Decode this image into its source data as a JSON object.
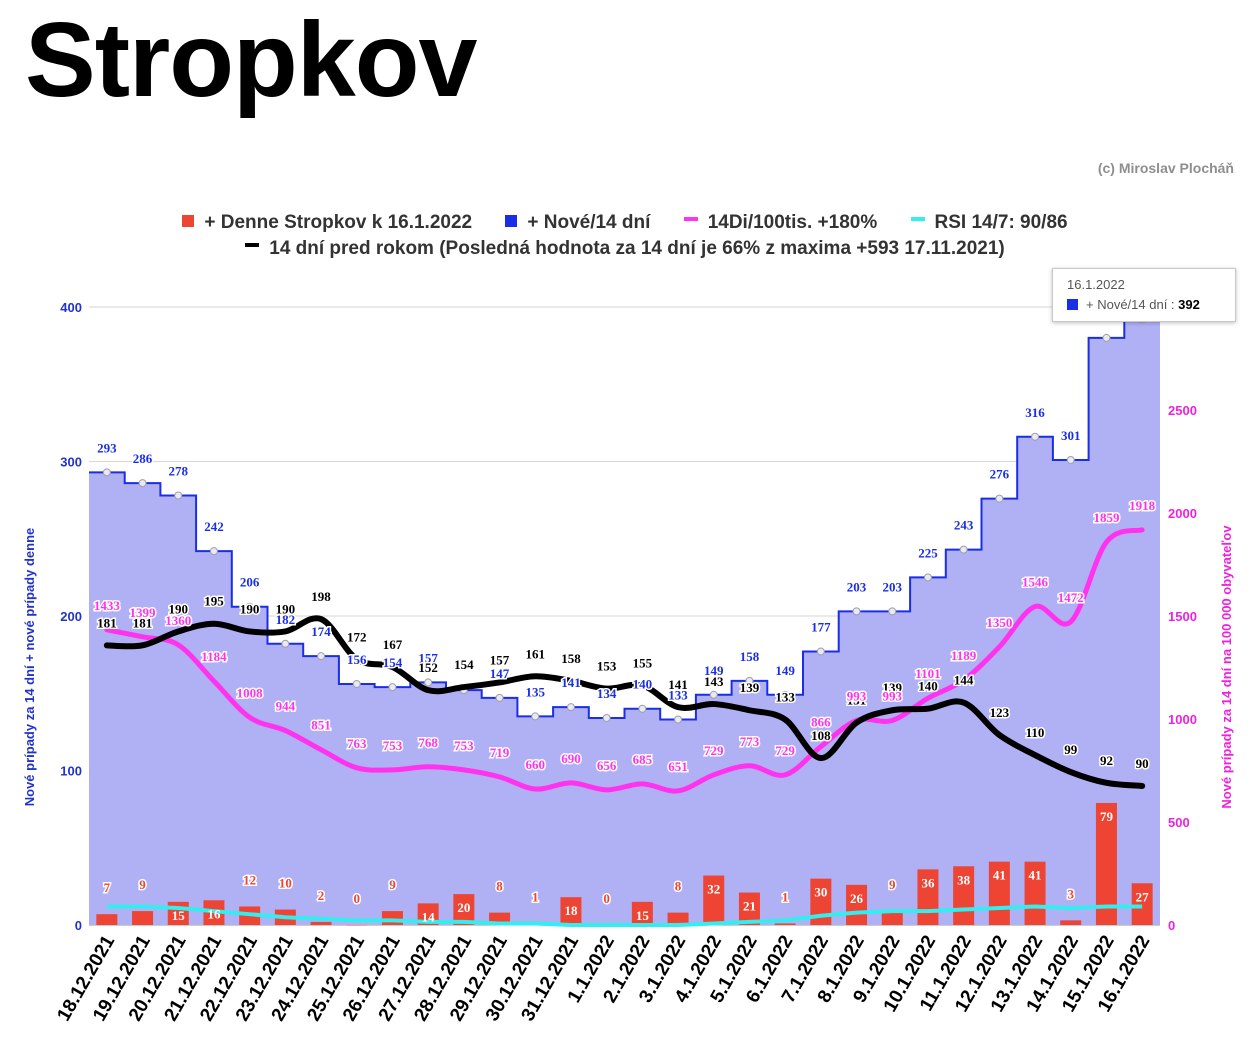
{
  "page": {
    "title": "Stropkov",
    "copyright": "(c) Miroslav Plocháň"
  },
  "legend": {
    "daily": {
      "label": "+ Denne Stropkov k 16.1.2022",
      "color": "#ee4433"
    },
    "new14": {
      "label": "+ Nové/14 dní",
      "color": "#1a2ee8"
    },
    "per100k": {
      "label": "14Di/100tis. +180%",
      "color": "#ff33ee"
    },
    "rsi": {
      "label": "RSI 14/7: 90/86",
      "color": "#33eeee"
    },
    "lastYear": {
      "label": "14 dní pred rokom (Posledná hodnota za 14 dní je 66% z maxima +593 17.11.2021)",
      "color": "#000000"
    }
  },
  "tooltip": {
    "date": "16.1.2022",
    "series": "+ Nové/14 dní",
    "sep": " : ",
    "value": "392"
  },
  "chart_data": {
    "type": "combo",
    "title": "Stropkov",
    "categories": [
      "18.12.2021",
      "19.12.2021",
      "20.12.2021",
      "21.12.2021",
      "22.12.2021",
      "23.12.2021",
      "24.12.2021",
      "25.12.2021",
      "26.12.2021",
      "27.12.2021",
      "28.12.2021",
      "29.12.2021",
      "30.12.2021",
      "31.12.2021",
      "1.1.2022",
      "2.1.2022",
      "3.1.2022",
      "4.1.2022",
      "5.1.2022",
      "6.1.2022",
      "7.1.2022",
      "8.1.2022",
      "9.1.2022",
      "10.1.2022",
      "11.1.2022",
      "12.1.2022",
      "13.1.2022",
      "14.1.2022",
      "15.1.2022",
      "16.1.2022"
    ],
    "y_left": {
      "label": "Nové prípady za 14 dní + nové prípady denne",
      "ylim": [
        0,
        400
      ],
      "ticks": [
        "0",
        "100",
        "200",
        "300",
        "400"
      ]
    },
    "y_right": {
      "label": "Nové prípady za 14 dní na 100 000 obyvateľov",
      "ylim": [
        0,
        3000
      ],
      "ticks": [
        "0",
        "500",
        "1000",
        "1500",
        "2000",
        "2500"
      ]
    },
    "series": [
      {
        "name": "+ Nové/14 dní",
        "type": "stepped-area",
        "axis": "left",
        "values": [
          293,
          286,
          278,
          242,
          206,
          182,
          174,
          156,
          154,
          157,
          152,
          147,
          135,
          141,
          134,
          140,
          133,
          149,
          158,
          149,
          177,
          203,
          203,
          225,
          243,
          276,
          316,
          301,
          380,
          392
        ],
        "labels": [
          "293",
          "286",
          "278",
          "242",
          "206",
          "182",
          "174",
          "156",
          "154",
          "157",
          "",
          "147",
          "135",
          "141",
          "134",
          "140",
          "133",
          "149",
          "158",
          "149",
          "177",
          "203",
          "203",
          "225",
          "243",
          "276",
          "316",
          "301",
          "",
          ""
        ]
      },
      {
        "name": "+ Denne Stropkov k 16.1.2022",
        "type": "bar",
        "axis": "left",
        "values": [
          7,
          9,
          15,
          16,
          12,
          10,
          2,
          0,
          9,
          14,
          20,
          8,
          1,
          18,
          0,
          15,
          8,
          32,
          21,
          1,
          30,
          26,
          9,
          36,
          38,
          41,
          41,
          3,
          79,
          27
        ],
        "labels": [
          "7",
          "9",
          "15",
          "16",
          "12",
          "10",
          "2",
          "0",
          "9",
          "14",
          "20",
          "8",
          "1",
          "18",
          "0",
          "15",
          "8",
          "32",
          "21",
          "1",
          "30",
          "26",
          "9",
          "36",
          "38",
          "41",
          "41",
          "3",
          "79",
          "27"
        ]
      },
      {
        "name": "14Di/100tis. +180%",
        "type": "line",
        "axis": "right",
        "values": [
          1433,
          1399,
          1360,
          1184,
          1008,
          944,
          851,
          763,
          753,
          768,
          753,
          719,
          660,
          690,
          656,
          685,
          651,
          729,
          773,
          729,
          866,
          993,
          993,
          1101,
          1189,
          1350,
          1546,
          1472,
          1859,
          1918
        ],
        "labels": [
          "1433",
          "1399",
          "1360",
          "1184",
          "1008",
          "944",
          "851",
          "763",
          "753",
          "768",
          "753",
          "719",
          "660",
          "690",
          "656",
          "685",
          "651",
          "729",
          "773",
          "729",
          "866",
          "993",
          "993",
          "1101",
          "1189",
          "1350",
          "1546",
          "1472",
          "1859",
          "1918"
        ]
      },
      {
        "name": "14 dní pred rokom",
        "type": "line",
        "axis": "left",
        "values": [
          181,
          181,
          190,
          195,
          190,
          190,
          198,
          172,
          167,
          152,
          154,
          157,
          161,
          158,
          153,
          155,
          141,
          143,
          139,
          133,
          108,
          131,
          139,
          140,
          144,
          123,
          110,
          99,
          92,
          90
        ],
        "labels": [
          "181",
          "181",
          "190",
          "195",
          "190",
          "190",
          "198",
          "172",
          "167",
          "152",
          "154",
          "157",
          "161",
          "158",
          "153",
          "155",
          "141",
          "143",
          "139",
          "133",
          "108",
          "131",
          "139",
          "140",
          "144",
          "123",
          "110",
          "99",
          "92",
          "90"
        ]
      },
      {
        "name": "RSI 14/7: 90/86",
        "type": "line",
        "axis": "left",
        "values": [
          12,
          12,
          11,
          9,
          7,
          5,
          4,
          3,
          3,
          2,
          2,
          1,
          1,
          0,
          0,
          0,
          0,
          1,
          2,
          3,
          6,
          8,
          9,
          9,
          10,
          11,
          12,
          11,
          12,
          12
        ]
      }
    ]
  }
}
